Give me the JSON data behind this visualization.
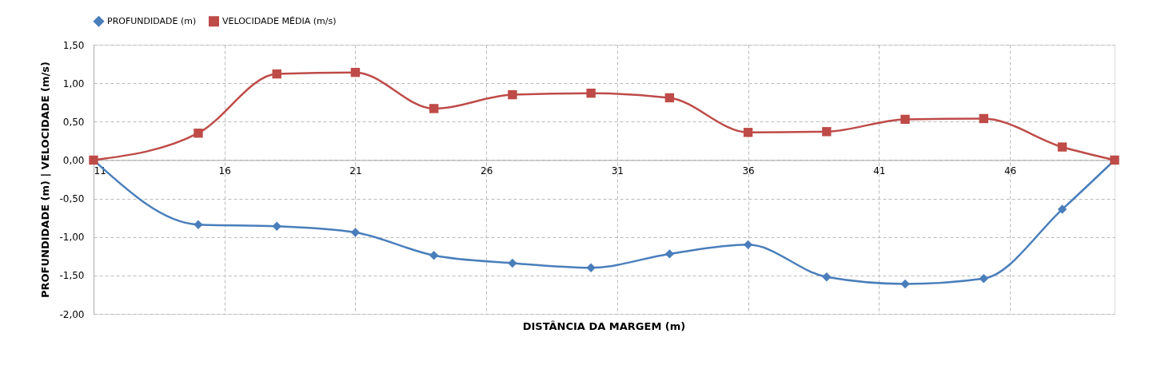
{
  "chart_data": {
    "type": "line",
    "xlabel": "DISTÂNCIA DA MARGEM (m)",
    "ylabel": "PROFUNDIDADE (m)  |    VELOCIDADE (m/s)",
    "x": [
      11,
      15,
      18,
      21,
      24,
      27,
      30,
      33,
      36,
      39,
      42,
      45,
      48,
      50
    ],
    "series": [
      {
        "name": "PROFUNDIDADE (m)",
        "color": "#4a7ebb",
        "marker": "diamond",
        "values": [
          0,
          -0.84,
          -0.86,
          -0.94,
          -1.24,
          -1.34,
          -1.4,
          -1.22,
          -1.1,
          -1.52,
          -1.61,
          -1.54,
          -0.64,
          0
        ]
      },
      {
        "name": "VELOCIDADE MÉDIA (m/s)",
        "color": "#be4b48",
        "marker": "square",
        "values": [
          0,
          0.35,
          1.12,
          1.14,
          0.67,
          0.85,
          0.87,
          0.81,
          0.36,
          0.37,
          0.53,
          0.54,
          0.17,
          0
        ]
      }
    ],
    "xlim": [
      11,
      50
    ],
    "xticks": [
      11,
      16,
      21,
      26,
      31,
      36,
      41,
      46
    ],
    "ylim": [
      -2,
      1.5
    ],
    "yticks": [
      {
        "value": -2,
        "label": "-2,00"
      },
      {
        "value": -1.5,
        "label": "-1,50"
      },
      {
        "value": -1,
        "label": "-1,00"
      },
      {
        "value": -0.5,
        "label": "-0,50"
      },
      {
        "value": 0,
        "label": "0,00"
      },
      {
        "value": 0.5,
        "label": "0,50"
      },
      {
        "value": 1,
        "label": "1,00"
      },
      {
        "value": 1.5,
        "label": "1,50"
      }
    ],
    "grid": true,
    "legend": "top",
    "line_style": "solid"
  }
}
